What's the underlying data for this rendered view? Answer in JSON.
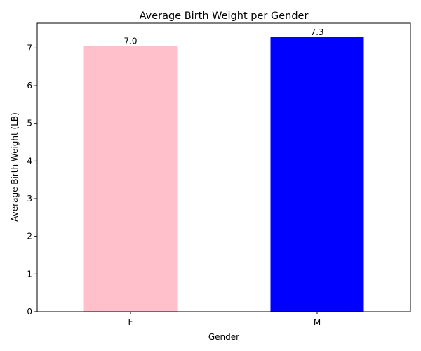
{
  "chart_data": {
    "type": "bar",
    "title": "Average Birth Weight per Gender",
    "xlabel": "Gender",
    "ylabel": "Average Birth Weight (LB)",
    "categories": [
      "F",
      "M"
    ],
    "values": [
      7.05,
      7.29
    ],
    "data_labels": [
      "7.0",
      "7.3"
    ],
    "colors": [
      "#ffc0cb",
      "#0000ff"
    ],
    "ylim": [
      0,
      7.66
    ],
    "yticks": [
      0,
      1,
      2,
      3,
      4,
      5,
      6,
      7
    ],
    "grid": false,
    "legend": "none"
  }
}
